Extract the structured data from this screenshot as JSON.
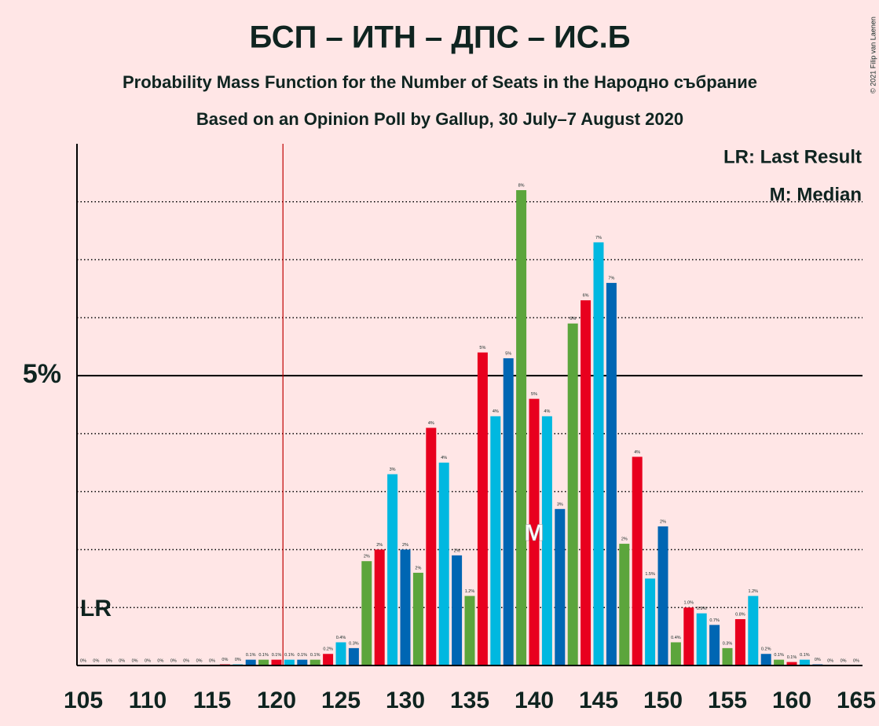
{
  "chart_data": {
    "type": "bar",
    "title": "БСП – ИТН – ДПС – ИС.Б",
    "subtitle": "Probability Mass Function for the Number of Seats in the Народно събрание",
    "subtitle2": "Based on an Opinion Poll by Gallup, 30 July–7 August 2020",
    "copyright": "© 2021 Filip van Laenen",
    "legend": [
      "LR: Last Result",
      "M: Median"
    ],
    "last_result_label": "LR",
    "median_label": "M",
    "last_result": 120.5,
    "median": 140,
    "categories": [
      105,
      106,
      107,
      108,
      109,
      110,
      111,
      112,
      113,
      114,
      115,
      116,
      117,
      118,
      119,
      120,
      121,
      122,
      123,
      124,
      125,
      126,
      127,
      128,
      129,
      130,
      131,
      132,
      133,
      134,
      135,
      136,
      137,
      138,
      139,
      140,
      141,
      142,
      143,
      144,
      145,
      146,
      147,
      148,
      149,
      150,
      151,
      152,
      153,
      154,
      155,
      156,
      157,
      158,
      159,
      160,
      161,
      162,
      163,
      164,
      165
    ],
    "xticks": [
      105,
      110,
      115,
      120,
      125,
      130,
      135,
      140,
      145,
      150,
      155,
      160,
      165
    ],
    "values": [
      0,
      0,
      0,
      0,
      0,
      0,
      0,
      0,
      0,
      0,
      0,
      0.02,
      0.02,
      0.1,
      0.1,
      0.1,
      0.1,
      0.1,
      0.1,
      0.2,
      0.4,
      0.3,
      1.8,
      2.0,
      3.3,
      2.0,
      1.6,
      4.1,
      3.5,
      1.9,
      1.2,
      5.4,
      4.3,
      5.3,
      8.2,
      4.6,
      4.3,
      2.7,
      5.9,
      6.3,
      7.3,
      6.6,
      2.1,
      3.6,
      1.5,
      2.4,
      0.4,
      1.0,
      0.9,
      0.7,
      0.3,
      0.8,
      1.2,
      0.2,
      0.1,
      0.06,
      0.1,
      0.02,
      0,
      0,
      0
    ],
    "value_labels": [
      "0%",
      "0%",
      "0%",
      "0%",
      "0%",
      "0%",
      "0%",
      "0%",
      "0%",
      "0%",
      "0%",
      "0%",
      "0%",
      "0.1%",
      "0.1%",
      "0.1%",
      "0.1%",
      "0.1%",
      "0.1%",
      "0.2%",
      "0.4%",
      "0.3%",
      "2%",
      "2%",
      "3%",
      "2%",
      "2%",
      "4%",
      "4%",
      "2%",
      "1.2%",
      "5%",
      "4%",
      "5%",
      "8%",
      "5%",
      "4%",
      "3%",
      "6%",
      "6%",
      "7%",
      "7%",
      "2%",
      "4%",
      "1.5%",
      "2%",
      "0.4%",
      "1.0%",
      "0.9%",
      "0.7%",
      "0.3%",
      "0.8%",
      "1.2%",
      "0.2%",
      "0.1%",
      "0.1%",
      "0.1%",
      "0%",
      "0%",
      "0%",
      "0%"
    ],
    "palette": [
      "#00b8e0",
      "#0066b3",
      "#5ca53c",
      "#e8001e"
    ],
    "ylim": [
      0,
      9
    ],
    "yticks": [
      {
        "value": 5,
        "label": "5%"
      }
    ],
    "grid_lines": [
      1,
      2,
      3,
      4,
      6,
      7,
      8
    ]
  }
}
